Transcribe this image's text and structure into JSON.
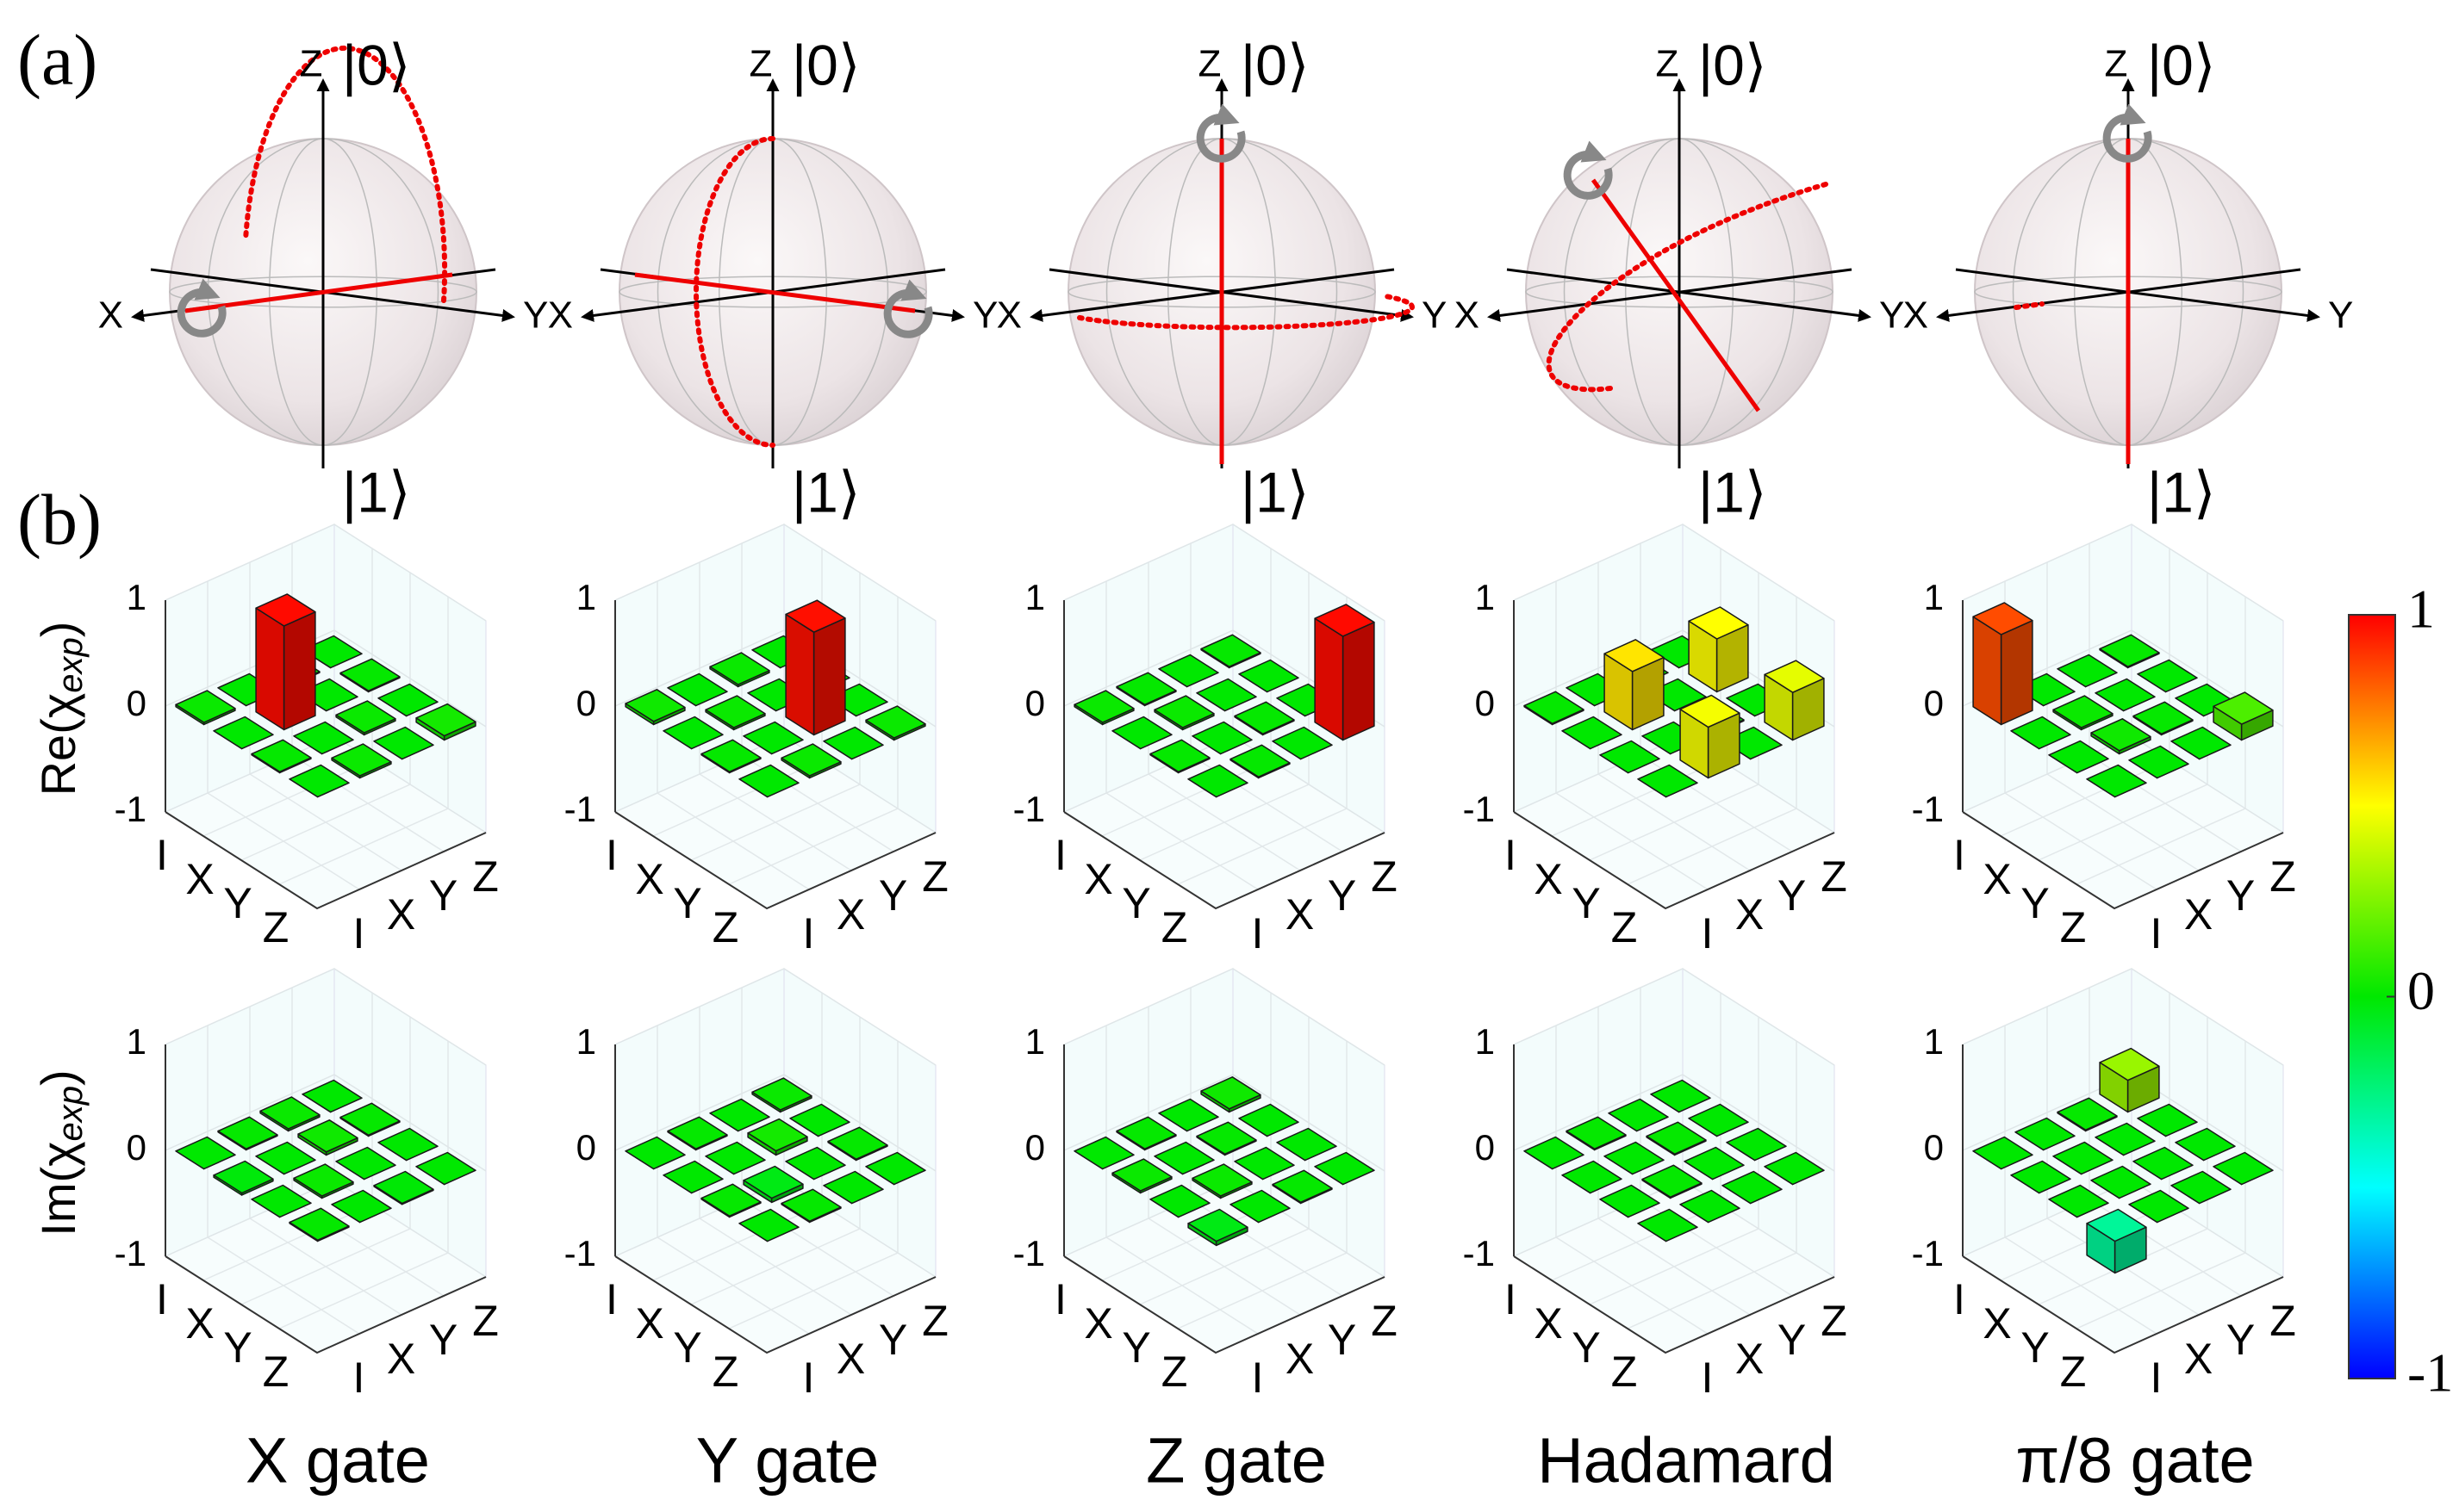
{
  "panel_a": {
    "label": "(a)",
    "axis_z": "Z",
    "axis_x": "X",
    "axis_y": "Y",
    "ket0": "|0⟩",
    "ket1": "|1⟩"
  },
  "panel_b": {
    "label": "(b)",
    "row_labels": [
      {
        "main": "Re(χ",
        "sub": "exp",
        "close": ")"
      },
      {
        "main": "Im(χ",
        "sub": "exp",
        "close": ")"
      }
    ],
    "axis_labels": [
      "I",
      "X",
      "Y",
      "Z"
    ],
    "zlim": [
      -1,
      1
    ],
    "zticks": [
      -1,
      0,
      1
    ],
    "gates": [
      {
        "name": "X gate",
        "re": [
          [
            0.02,
            0,
            0.01,
            0
          ],
          [
            0,
            0.98,
            0,
            0.01
          ],
          [
            0.01,
            0,
            0.02,
            0
          ],
          [
            0,
            0.02,
            0,
            0.04
          ]
        ],
        "im": [
          [
            0,
            0.01,
            0.02,
            0
          ],
          [
            -0.02,
            0,
            0.03,
            0.01
          ],
          [
            0,
            0.02,
            0,
            0
          ],
          [
            0.01,
            0,
            -0.01,
            0
          ]
        ]
      },
      {
        "name": "Y gate",
        "re": [
          [
            0.03,
            0,
            0.02,
            0
          ],
          [
            0,
            0.02,
            0,
            0
          ],
          [
            0.01,
            0,
            0.97,
            0
          ],
          [
            0,
            0.02,
            0,
            0.02
          ]
        ],
        "im": [
          [
            0,
            0.01,
            0,
            0.02
          ],
          [
            0,
            0,
            0.04,
            0
          ],
          [
            0.01,
            -0.04,
            0,
            0.01
          ],
          [
            0,
            0.01,
            0,
            0
          ]
        ]
      },
      {
        "name": "Z gate",
        "re": [
          [
            0.02,
            0.01,
            0,
            0.01
          ],
          [
            0,
            0.02,
            0,
            0
          ],
          [
            0.01,
            0,
            0.01,
            0
          ],
          [
            0,
            0.01,
            0,
            0.98
          ]
        ],
        "im": [
          [
            0,
            0.01,
            0,
            0.03
          ],
          [
            0.02,
            0,
            0.01,
            0
          ],
          [
            0,
            0.02,
            0,
            0
          ],
          [
            -0.04,
            0,
            0.01,
            0
          ]
        ]
      },
      {
        "name": "Hadamard",
        "re": [
          [
            0.01,
            0,
            0,
            0
          ],
          [
            0,
            0.55,
            0,
            0.5
          ],
          [
            0,
            0,
            0.01,
            0
          ],
          [
            0,
            0.48,
            0,
            0.45
          ]
        ],
        "im": [
          [
            0,
            0.01,
            0,
            0
          ],
          [
            0,
            0,
            0.01,
            0
          ],
          [
            0,
            0.01,
            0,
            0
          ],
          [
            0,
            0,
            0,
            0
          ]
        ]
      },
      {
        "name": "π/8 gate",
        "re": [
          [
            0.85,
            0,
            0,
            0.01
          ],
          [
            0,
            0.02,
            0,
            0
          ],
          [
            0,
            0.03,
            0.01,
            0
          ],
          [
            0,
            0,
            0,
            0.15
          ]
        ],
        "im": [
          [
            0,
            0,
            0.01,
            0.3
          ],
          [
            0,
            0,
            0,
            0
          ],
          [
            0,
            0,
            0,
            0
          ],
          [
            -0.3,
            0,
            0,
            0
          ]
        ]
      }
    ],
    "colorbar": {
      "colormap": "jet",
      "lim": [
        -1,
        1
      ],
      "ticks": [
        -1,
        0,
        1
      ]
    }
  }
}
